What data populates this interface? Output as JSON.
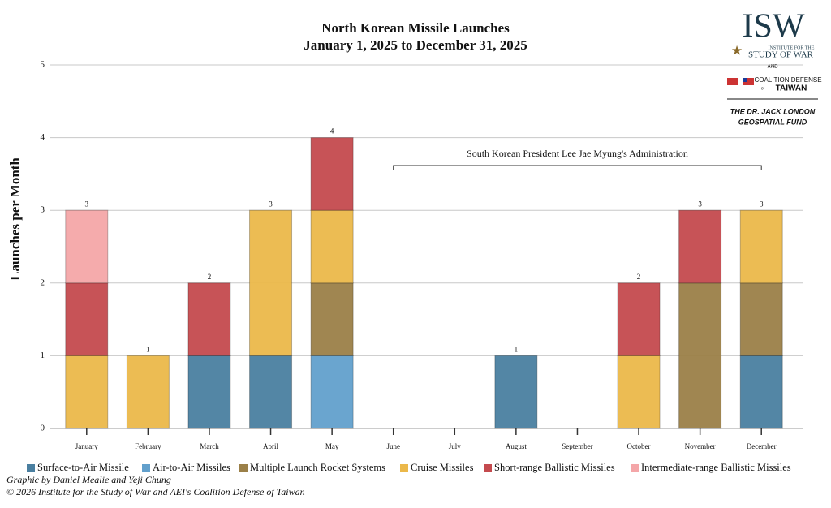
{
  "chart_data": {
    "type": "stacked-bar",
    "title": "North Korean Missile Launches",
    "subtitle": "January 1, 2025 to December 31, 2025",
    "y_label": "Launches per Month",
    "categories": [
      "January",
      "February",
      "March",
      "April",
      "May",
      "June",
      "July",
      "August",
      "September",
      "October",
      "November",
      "December"
    ],
    "series": [
      {
        "name": "Surface-to-Air Missile",
        "color": "#4a7fa0",
        "values": [
          0,
          0,
          1,
          1,
          0,
          0,
          0,
          1,
          0,
          0,
          0,
          1
        ]
      },
      {
        "name": "Air-to-Air Missiles",
        "color": "#62a0cc",
        "values": [
          0,
          0,
          0,
          0,
          1,
          0,
          0,
          0,
          0,
          0,
          0,
          0
        ]
      },
      {
        "name": "Multiple Launch Rocket Systems",
        "color": "#9b8048",
        "values": [
          0,
          0,
          0,
          0,
          1,
          0,
          0,
          0,
          0,
          0,
          2,
          1
        ]
      },
      {
        "name": "Cruise Missiles",
        "color": "#ebb84a",
        "values": [
          1,
          1,
          0,
          2,
          1,
          0,
          0,
          0,
          0,
          1,
          0,
          1
        ]
      },
      {
        "name": "Short-range Ballistic Missiles",
        "color": "#c44a4e",
        "values": [
          1,
          0,
          1,
          0,
          1,
          0,
          0,
          0,
          0,
          1,
          1,
          0
        ]
      },
      {
        "name": "Intermediate-range Ballistic Missiles",
        "color": "#f4a6a8",
        "values": [
          1,
          0,
          0,
          0,
          0,
          0,
          0,
          0,
          0,
          0,
          0,
          0
        ]
      }
    ],
    "totals": [
      3,
      1,
      2,
      3,
      4,
      null,
      null,
      1,
      null,
      2,
      3,
      3
    ],
    "ylim": [
      0,
      5
    ],
    "yticks": [
      0,
      1,
      2,
      3,
      4,
      5
    ],
    "grid": true,
    "annotation": "South Korean President Lee Jae Myung's Administration"
  },
  "logo": {
    "name": "ISW",
    "line1": "INSTITUTE FOR THE",
    "line2": "STUDY OF WAR",
    "and": "AND",
    "partner1": "COALITION DEFENSE",
    "partner_of": "of",
    "partner2": "TAIWAN",
    "fund1": "THE DR. JACK LONDON",
    "fund2": "GEOSPATIAL FUND"
  },
  "footer": {
    "credit": "Graphic by Daniel Mealie and Yeji Chung",
    "copyright": "© 2026 Institute for the Study of War and AEI's Coalition Defense of Taiwan"
  }
}
